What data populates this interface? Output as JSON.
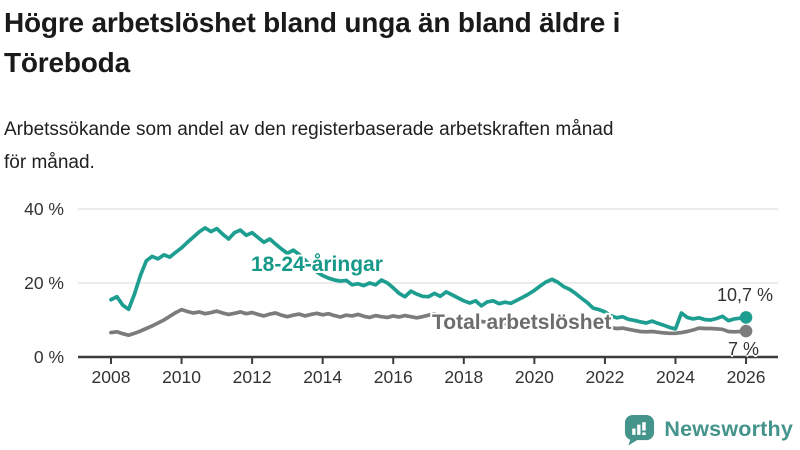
{
  "header": {
    "title_lines": [
      "Högre arbetslöshet bland unga än bland äldre i",
      "Töreboda"
    ],
    "subtitle_lines": [
      "Arbetssökande som andel av den registerbaserade arbetskraften månad",
      "för månad."
    ]
  },
  "chart_data": {
    "type": "line",
    "x_start": 2008,
    "x_step_years": 0.166667,
    "x_ticks": [
      2008,
      2010,
      2012,
      2014,
      2016,
      2018,
      2020,
      2022,
      2024,
      2026
    ],
    "y_ticks": [
      {
        "value": 0,
        "label": "0 %"
      },
      {
        "value": 20,
        "label": "20 %"
      },
      {
        "value": 40,
        "label": "40 %"
      }
    ],
    "ylim": [
      0,
      43
    ],
    "grid": "horizontal",
    "colors": {
      "grid": "#d9d9d9",
      "axis": "#3c3c3c",
      "tick_text": "#333333"
    },
    "series": [
      {
        "name": "18-24-åringar",
        "color": "#1d9e90",
        "label_color": "#17998a",
        "end_label": "10,7 %",
        "end_value": 10.7,
        "values": [
          15.5,
          16.3,
          14.0,
          12.9,
          17.0,
          22.0,
          26.0,
          27.2,
          26.5,
          27.6,
          27.0,
          28.3,
          29.5,
          31.0,
          32.4,
          33.8,
          34.9,
          33.9,
          34.7,
          33.2,
          31.9,
          33.6,
          34.3,
          32.9,
          33.6,
          32.3,
          31.0,
          31.9,
          30.5,
          29.2,
          28.0,
          28.9,
          27.7,
          26.2,
          24.6,
          23.0,
          22.0,
          21.3,
          20.8,
          20.5,
          20.7,
          19.5,
          19.8,
          19.3,
          20.0,
          19.5,
          20.8,
          20.0,
          18.7,
          17.2,
          16.3,
          17.8,
          17.0,
          16.4,
          16.3,
          17.2,
          16.4,
          17.6,
          16.8,
          16.0,
          15.2,
          14.6,
          15.2,
          13.8,
          14.9,
          15.2,
          14.4,
          14.8,
          14.5,
          15.3,
          16.1,
          17.0,
          18.0,
          19.2,
          20.3,
          21.0,
          20.2,
          19.0,
          18.3,
          17.2,
          15.9,
          14.7,
          13.2,
          12.8,
          12.2,
          11.2,
          10.6,
          10.9,
          10.2,
          9.9,
          9.5,
          9.2,
          9.7,
          9.1,
          8.6,
          8.0,
          7.6,
          11.9,
          10.7,
          10.3,
          10.6,
          10.1,
          10.0,
          10.4,
          11.0,
          9.8,
          10.3,
          10.5,
          10.7
        ]
      },
      {
        "name": "Total arbetslöshet",
        "color": "#7c7c7c",
        "label_color": "#6d6d6d",
        "end_label": "7 %",
        "end_value": 7,
        "values": [
          6.6,
          6.8,
          6.3,
          5.9,
          6.4,
          7.0,
          7.7,
          8.4,
          9.2,
          10.0,
          11.0,
          12.0,
          12.8,
          12.3,
          11.9,
          12.2,
          11.7,
          12.0,
          12.4,
          11.9,
          11.5,
          11.8,
          12.2,
          11.7,
          12.0,
          11.5,
          11.1,
          11.6,
          11.9,
          11.3,
          10.9,
          11.3,
          11.6,
          11.1,
          11.5,
          11.8,
          11.4,
          11.7,
          11.2,
          10.8,
          11.3,
          11.1,
          11.5,
          11.0,
          10.7,
          11.2,
          10.9,
          10.7,
          11.1,
          10.8,
          11.2,
          10.9,
          10.6,
          10.9,
          11.3,
          11.7,
          11.2,
          10.8,
          10.5,
          10.3,
          10.0,
          10.2,
          9.8,
          9.6,
          9.4,
          9.4,
          9.2,
          9.0,
          9.1,
          9.3,
          9.2,
          9.4,
          9.8,
          10.1,
          9.9,
          9.6,
          9.4,
          9.2,
          9.0,
          8.8,
          8.6,
          8.4,
          8.2,
          8.0,
          7.8,
          7.9,
          7.7,
          7.8,
          7.5,
          7.2,
          6.9,
          6.8,
          6.9,
          6.7,
          6.5,
          6.4,
          6.4,
          6.6,
          6.9,
          7.3,
          7.8,
          7.7,
          7.7,
          7.6,
          7.5,
          6.9,
          6.8,
          6.9,
          7.0
        ]
      }
    ]
  },
  "footer": {
    "brand": "Newsworthy",
    "brand_color": "#45948c",
    "brand_icon": "bar-chart-speech-bubble-icon"
  }
}
